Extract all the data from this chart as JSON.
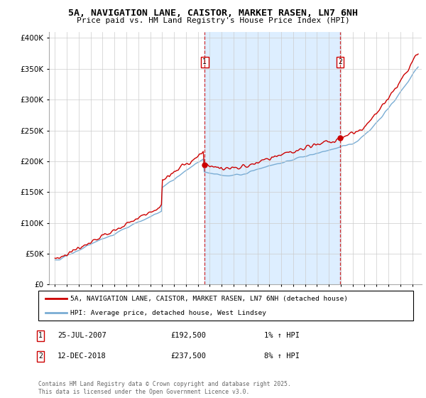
{
  "title_line1": "5A, NAVIGATION LANE, CAISTOR, MARKET RASEN, LN7 6NH",
  "title_line2": "Price paid vs. HM Land Registry's House Price Index (HPI)",
  "red_line_color": "#cc0000",
  "blue_line_color": "#7aadd4",
  "shade_color": "#ddeeff",
  "grid_color": "#cccccc",
  "bg_color": "#ffffff",
  "marker1_x": 2007.57,
  "marker1_y": 192500,
  "marker2_x": 2018.95,
  "marker2_y": 237500,
  "ylim": [
    0,
    410000
  ],
  "yticks": [
    0,
    50000,
    100000,
    150000,
    200000,
    250000,
    300000,
    350000,
    400000
  ],
  "xlim_start": 1994.5,
  "xlim_end": 2025.8,
  "legend_red": "5A, NAVIGATION LANE, CAISTOR, MARKET RASEN, LN7 6NH (detached house)",
  "legend_blue": "HPI: Average price, detached house, West Lindsey",
  "footer": "Contains HM Land Registry data © Crown copyright and database right 2025.\nThis data is licensed under the Open Government Licence v3.0."
}
